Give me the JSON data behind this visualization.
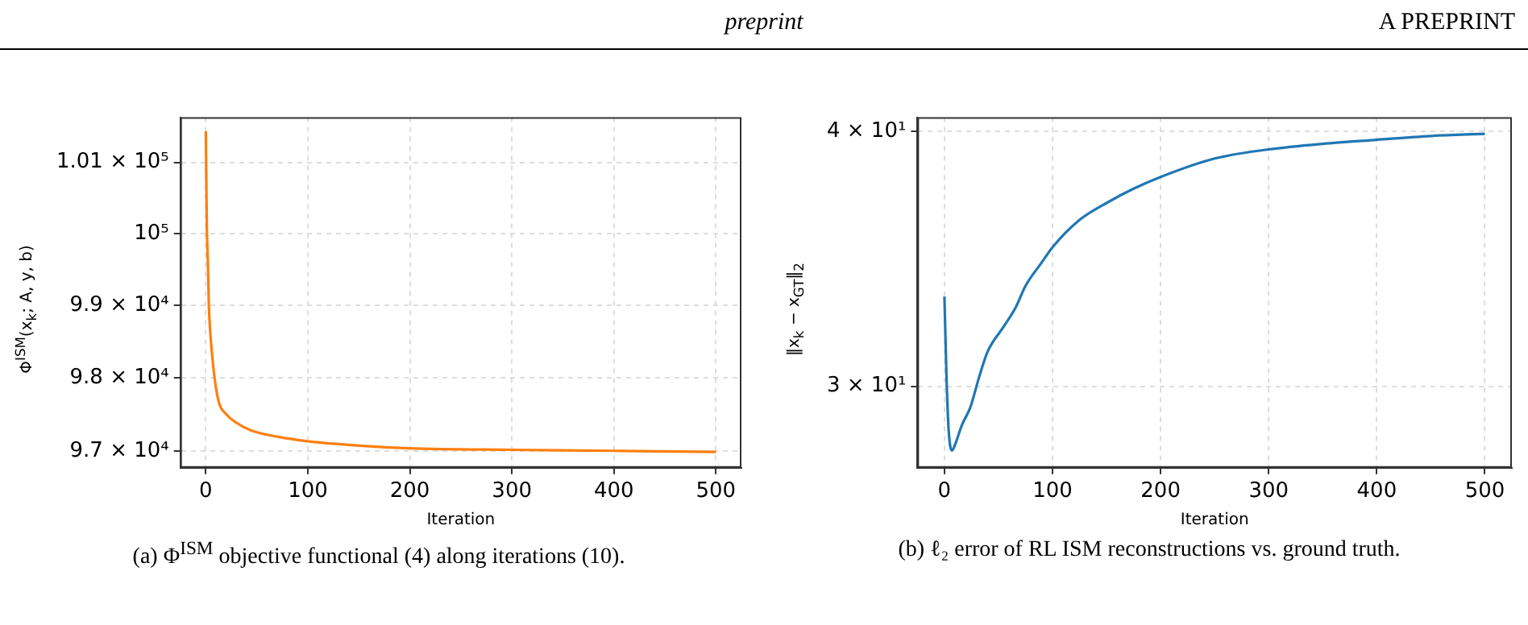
{
  "chart_data": [
    {
      "type": "other",
      "annotations": [
        "preprint",
        "A PREPRINT"
      ]
    },
    {
      "type": "line",
      "xlabel": "Iteration",
      "ylabel": "Φ$^{ISM}$(x$_{k}$; A, y, b)",
      "log": "y",
      "grid": true,
      "annotations": [
        "(a) Φ$^{ISM}$ objective functional (4) along iterations (10)."
      ],
      "x": [
        0,
        1,
        2,
        3,
        4,
        6,
        9,
        13,
        20,
        28,
        44,
        71,
        100,
        151,
        200,
        300,
        400,
        500
      ],
      "series": [
        {
          "color": "#ff7f0e",
          "values": [
            101440,
            100100,
            99600,
            99000,
            98700,
            98340,
            97950,
            97650,
            97500,
            97400,
            97280,
            97190,
            97130,
            97070,
            97035,
            97014,
            97000,
            96986
          ]
        }
      ],
      "xlim": [
        -25,
        525
      ],
      "xticks": [
        0,
        100,
        200,
        300,
        400,
        500
      ],
      "ylim": [
        96770,
        101640
      ],
      "yticks": [
        {
          "value": 97000,
          "label": "9.7 × 10⁴"
        },
        {
          "value": 98000,
          "label": "9.8 × 10⁴"
        },
        {
          "value": 99000,
          "label": "9.9 × 10⁴"
        },
        {
          "value": 100000,
          "label": "10⁵"
        },
        {
          "value": 101000,
          "label": "1.01 × 10⁵"
        }
      ]
    },
    {
      "type": "line",
      "xlabel": "Iteration",
      "ylabel": "‖x$_{k}$ − x$_{GT}$‖$_{2}$",
      "log": "y",
      "grid": true,
      "annotations": [
        "(b) ℓ₂ error of RL ISM reconstructions vs. ground truth."
      ],
      "x": [
        0,
        2,
        4,
        7,
        10,
        16,
        24,
        32,
        40,
        55,
        66,
        75,
        90,
        100,
        125,
        150,
        175,
        200,
        250,
        300,
        350,
        400,
        450,
        500
      ],
      "series": [
        {
          "color": "#1f77b4",
          "values": [
            33.2,
            30.2,
            28.5,
            27.9,
            28.1,
            28.7,
            29.3,
            30.3,
            31.2,
            32.1,
            32.8,
            33.6,
            34.5,
            35.1,
            36.2,
            36.9,
            37.5,
            38.0,
            38.8,
            39.2,
            39.45,
            39.63,
            39.8,
            39.9
          ]
        }
      ],
      "xlim": [
        -25,
        525
      ],
      "xticks": [
        0,
        100,
        200,
        300,
        400,
        500
      ],
      "ylim": [
        27.36,
        40.65
      ],
      "yticks": [
        {
          "value": 30,
          "label": "3 × 10¹"
        },
        {
          "value": 40,
          "label": "4 × 10¹"
        }
      ]
    }
  ]
}
